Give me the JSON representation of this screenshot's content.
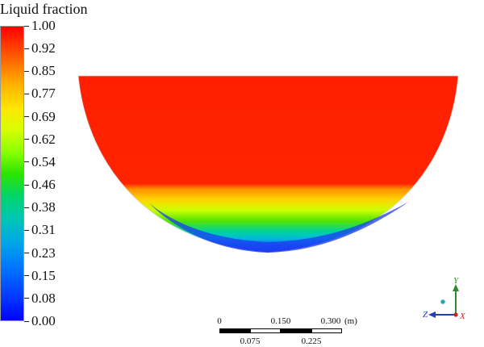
{
  "legend": {
    "title": "Liquid fraction",
    "colormap": "rainbow",
    "min": 0,
    "max": 1,
    "ticks": [
      "1.00",
      "0.92",
      "0.85",
      "0.77",
      "0.69",
      "0.62",
      "0.54",
      "0.46",
      "0.38",
      "0.31",
      "0.23",
      "0.15",
      "0.08",
      "0.00"
    ],
    "ticks_note": "top-to-bottom"
  },
  "scale_bar": {
    "top_labels": [
      "0",
      "0.150",
      "0.300"
    ],
    "bottom_labels": [
      "0.075",
      "0.225"
    ],
    "units": "(m)"
  },
  "axis_triad": {
    "labels": [
      "Y",
      "Z",
      "X"
    ],
    "colors": {
      "Y": "#2e8b2e",
      "Z": "#1f3fbf",
      "X": "#cc2222"
    }
  },
  "colors": {
    "background": "#ffffff",
    "liquid_high": "#ff1f00",
    "liquid_low": "#1b3cf0"
  }
}
